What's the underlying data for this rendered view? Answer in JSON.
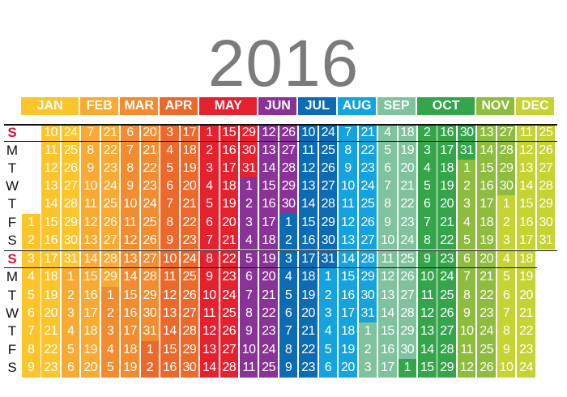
{
  "year": "2016",
  "months": [
    {
      "label": "JAN",
      "color": "#fcc52b"
    },
    {
      "label": "FEB",
      "color": "#f8aa33"
    },
    {
      "label": "MAR",
      "color": "#f28c30"
    },
    {
      "label": "APR",
      "color": "#ec692c"
    },
    {
      "label": "MAY",
      "color": "#e3212f"
    },
    {
      "label": "JUN",
      "color": "#8a3397"
    },
    {
      "label": "JUL",
      "color": "#0b6bb3"
    },
    {
      "label": "AUG",
      "color": "#15a3df"
    },
    {
      "label": "SEP",
      "color": "#7fc29d"
    },
    {
      "label": "OCT",
      "color": "#34a54b"
    },
    {
      "label": "NOV",
      "color": "#8ebc3e"
    },
    {
      "label": "DEC",
      "color": "#c5d333"
    }
  ],
  "weekdays": [
    "S",
    "M",
    "T",
    "W",
    "T",
    "F",
    "S"
  ],
  "sunday_color": "#d4163c",
  "weeks": [
    [
      null,
      null,
      null,
      null,
      null,
      1,
      2
    ],
    [
      3,
      4,
      5,
      6,
      7,
      8,
      9
    ],
    [
      10,
      11,
      12,
      13,
      14,
      15,
      16
    ],
    [
      17,
      18,
      19,
      20,
      21,
      22,
      23
    ],
    [
      24,
      25,
      26,
      27,
      28,
      29,
      30
    ],
    [
      31,
      1,
      2,
      3,
      4,
      5,
      6
    ],
    [
      7,
      8,
      9,
      10,
      11,
      12,
      13
    ],
    [
      14,
      15,
      16,
      17,
      18,
      19,
      20
    ],
    [
      21,
      22,
      23,
      24,
      25,
      26,
      27
    ],
    [
      28,
      29,
      1,
      2,
      3,
      4,
      5
    ],
    [
      6,
      7,
      8,
      9,
      10,
      11,
      12
    ],
    [
      13,
      14,
      15,
      16,
      17,
      18,
      19
    ],
    [
      20,
      21,
      22,
      23,
      24,
      25,
      26
    ],
    [
      27,
      28,
      29,
      30,
      31,
      1,
      2
    ],
    [
      3,
      4,
      5,
      6,
      7,
      8,
      9
    ],
    [
      10,
      11,
      12,
      13,
      14,
      15,
      16
    ],
    [
      17,
      18,
      19,
      20,
      21,
      22,
      23
    ],
    [
      24,
      25,
      26,
      27,
      28,
      29,
      30
    ],
    [
      1,
      2,
      3,
      4,
      5,
      6,
      7
    ],
    [
      8,
      9,
      10,
      11,
      12,
      13,
      14
    ],
    [
      15,
      16,
      17,
      18,
      19,
      20,
      21
    ],
    [
      22,
      23,
      24,
      25,
      26,
      27,
      28
    ],
    [
      29,
      30,
      31,
      1,
      2,
      3,
      4
    ],
    [
      5,
      6,
      7,
      8,
      9,
      10,
      11
    ],
    [
      12,
      13,
      14,
      15,
      16,
      17,
      18
    ],
    [
      19,
      20,
      21,
      22,
      23,
      24,
      25
    ],
    [
      26,
      27,
      28,
      29,
      30,
      1,
      2
    ],
    [
      3,
      4,
      5,
      6,
      7,
      8,
      9
    ],
    [
      10,
      11,
      12,
      13,
      14,
      15,
      16
    ],
    [
      17,
      18,
      19,
      20,
      21,
      22,
      23
    ],
    [
      24,
      25,
      26,
      27,
      28,
      29,
      30
    ],
    [
      31,
      1,
      2,
      3,
      4,
      5,
      6
    ],
    [
      7,
      8,
      9,
      10,
      11,
      12,
      13
    ],
    [
      14,
      15,
      16,
      17,
      18,
      19,
      20
    ],
    [
      21,
      22,
      23,
      24,
      25,
      26,
      27
    ],
    [
      28,
      29,
      30,
      31,
      1,
      2,
      3
    ],
    [
      4,
      5,
      6,
      7,
      8,
      9,
      10
    ],
    [
      11,
      12,
      13,
      14,
      15,
      16,
      17
    ],
    [
      18,
      19,
      20,
      21,
      22,
      23,
      24
    ],
    [
      25,
      26,
      27,
      28,
      29,
      30,
      1
    ],
    [
      2,
      3,
      4,
      5,
      6,
      7,
      8
    ],
    [
      9,
      10,
      11,
      12,
      13,
      14,
      15
    ],
    [
      16,
      17,
      18,
      19,
      20,
      21,
      22
    ],
    [
      23,
      24,
      25,
      26,
      27,
      28,
      29
    ],
    [
      30,
      31,
      1,
      2,
      3,
      4,
      5
    ],
    [
      6,
      7,
      8,
      9,
      10,
      11,
      12
    ],
    [
      13,
      14,
      15,
      16,
      17,
      18,
      19
    ],
    [
      20,
      21,
      22,
      23,
      24,
      25,
      26
    ],
    [
      27,
      28,
      29,
      30,
      1,
      2,
      3
    ],
    [
      4,
      5,
      6,
      7,
      8,
      9,
      10
    ],
    [
      11,
      12,
      13,
      14,
      15,
      16,
      17
    ],
    [
      18,
      19,
      20,
      21,
      22,
      23,
      24
    ],
    [
      25,
      26,
      27,
      28,
      29,
      30,
      31
    ]
  ]
}
